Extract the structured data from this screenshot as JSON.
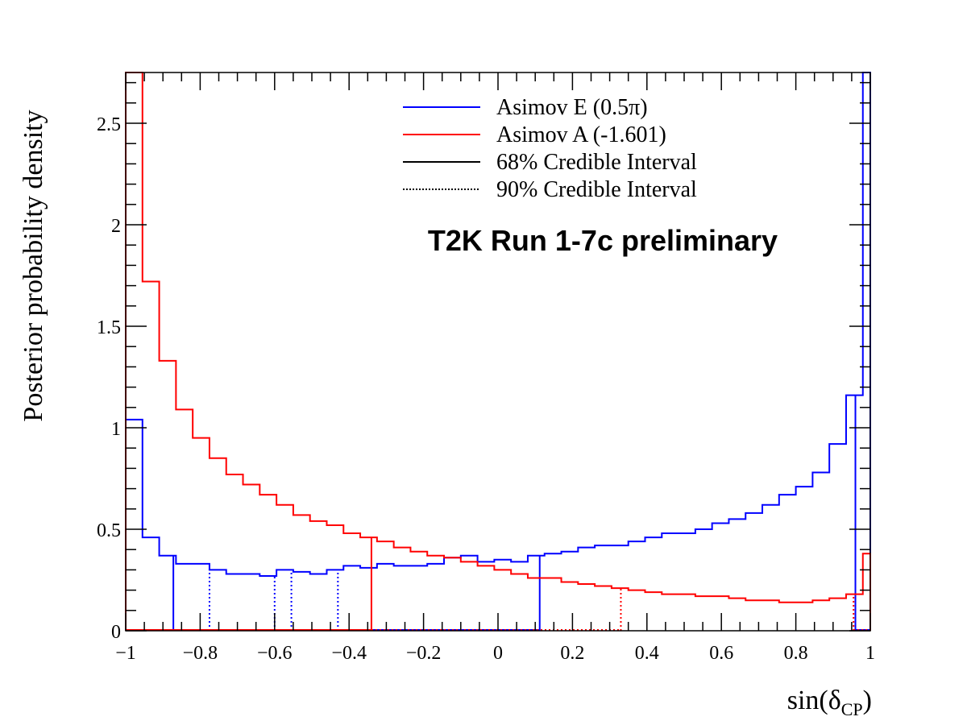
{
  "chart_data": {
    "type": "line",
    "plot_style": "step-histogram",
    "xlabel": "sin(δ",
    "xlabel_subscript": "CP",
    "xlabel_suffix": ")",
    "ylabel": "Posterior probability density",
    "xlim": [
      -1,
      1
    ],
    "ylim": [
      0,
      2.75
    ],
    "x_ticks": [
      -1,
      -0.8,
      -0.6,
      -0.4,
      -0.2,
      0,
      0.2,
      0.4,
      0.6,
      0.8,
      1
    ],
    "x_tick_labels": [
      "−1",
      "−0.8",
      "−0.6",
      "−0.4",
      "−0.2",
      "0",
      "0.2",
      "0.4",
      "0.6",
      "0.8",
      "1"
    ],
    "y_ticks": [
      0,
      0.5,
      1,
      1.5,
      2,
      2.5
    ],
    "y_tick_labels": [
      "0",
      "0.5",
      "1",
      "1.5",
      "2",
      "2.5"
    ],
    "bin_edges": [
      -1,
      -0.955,
      -0.91,
      -0.865,
      -0.82,
      -0.775,
      -0.73,
      -0.685,
      -0.64,
      -0.595,
      -0.55,
      -0.505,
      -0.46,
      -0.415,
      -0.37,
      -0.325,
      -0.28,
      -0.235,
      -0.19,
      -0.145,
      -0.1,
      -0.055,
      -0.01,
      0.035,
      0.08,
      0.125,
      0.17,
      0.215,
      0.26,
      0.305,
      0.35,
      0.395,
      0.44,
      0.485,
      0.53,
      0.575,
      0.62,
      0.665,
      0.71,
      0.755,
      0.8,
      0.845,
      0.89,
      0.935,
      0.98,
      1
    ],
    "series": [
      {
        "name": "Asimov E (0.5π)",
        "color": "#0000ff",
        "values": [
          1.04,
          0.46,
          0.37,
          0.33,
          0.33,
          0.3,
          0.28,
          0.28,
          0.27,
          0.3,
          0.29,
          0.28,
          0.3,
          0.32,
          0.31,
          0.33,
          0.32,
          0.32,
          0.33,
          0.36,
          0.37,
          0.34,
          0.35,
          0.34,
          0.37,
          0.38,
          0.39,
          0.41,
          0.42,
          0.42,
          0.44,
          0.46,
          0.48,
          0.48,
          0.5,
          0.53,
          0.55,
          0.58,
          0.62,
          0.67,
          0.71,
          0.78,
          0.92,
          1.16,
          2.75
        ],
        "interval_68": [
          [
            -0.872,
            0.112
          ],
          [
            0.96,
            1.0
          ]
        ],
        "interval_90": [
          [
            -0.775,
            -0.6
          ],
          [
            -0.555,
            -0.43
          ]
        ],
        "interval_90_outer": [
          [
            -1.0,
            1.0
          ]
        ]
      },
      {
        "name": "Asimov A (-1.601)",
        "color": "#ff0000",
        "values": [
          2.75,
          1.72,
          1.33,
          1.09,
          0.95,
          0.85,
          0.77,
          0.72,
          0.67,
          0.62,
          0.57,
          0.54,
          0.52,
          0.48,
          0.46,
          0.44,
          0.41,
          0.39,
          0.37,
          0.36,
          0.34,
          0.32,
          0.3,
          0.28,
          0.26,
          0.26,
          0.24,
          0.23,
          0.22,
          0.21,
          0.2,
          0.19,
          0.18,
          0.18,
          0.17,
          0.17,
          0.16,
          0.15,
          0.15,
          0.14,
          0.14,
          0.15,
          0.16,
          0.18,
          0.38
        ],
        "interval_68": [
          [
            -1.0,
            -0.34
          ]
        ],
        "interval_90": [
          [
            -1.0,
            0.33
          ],
          [
            0.955,
            1.0
          ]
        ]
      }
    ],
    "legend": {
      "placement": "top-right",
      "entries": [
        {
          "label": "Asimov E (0.5π)",
          "color": "#0000ff",
          "style": "solid"
        },
        {
          "label": "Asimov A (-1.601)",
          "color": "#ff0000",
          "style": "solid"
        },
        {
          "label": "68% Credible Interval",
          "color": "#000000",
          "style": "solid"
        },
        {
          "label": "90% Credible Interval",
          "color": "#000000",
          "style": "dotted"
        }
      ]
    },
    "annotation": "T2K Run 1-7c preliminary",
    "grid": false
  }
}
